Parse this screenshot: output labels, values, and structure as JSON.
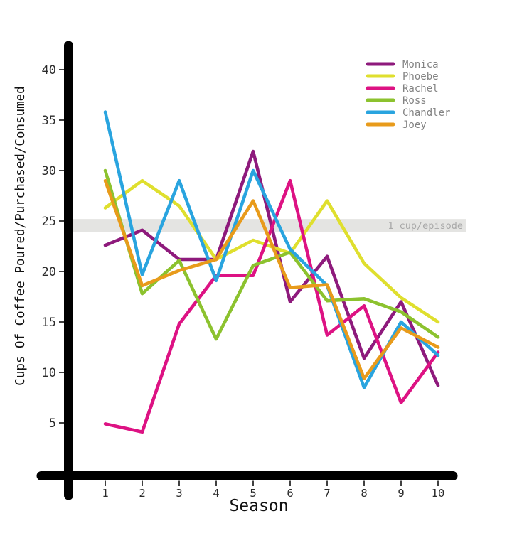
{
  "chart_data": {
    "type": "line",
    "title": "",
    "xlabel": "Season",
    "ylabel": "Cups Of Coffee Poured/Purchased/Consumed",
    "x": [
      1,
      2,
      3,
      4,
      5,
      6,
      7,
      8,
      9,
      10
    ],
    "x_tick_labels": [
      "1",
      "2",
      "3",
      "4",
      "5",
      "6",
      "7",
      "8",
      "9",
      "10"
    ],
    "y_ticks": [
      5,
      10,
      15,
      20,
      25,
      30,
      35,
      40
    ],
    "xlim": [
      0.1,
      10.6
    ],
    "ylim": [
      0,
      42.5
    ],
    "grid": false,
    "legend_position": "top-right",
    "series": [
      {
        "name": "Monica",
        "color": "#8e1a7c",
        "values": [
          22.6,
          24.1,
          21.2,
          21.2,
          31.9,
          17.0,
          21.5,
          11.4,
          17.0,
          8.7
        ]
      },
      {
        "name": "Phoebe",
        "color": "#dfdf2e",
        "values": [
          26.3,
          29.0,
          26.5,
          21.2,
          23.1,
          21.8,
          27.0,
          20.8,
          17.4,
          15.0
        ]
      },
      {
        "name": "Rachel",
        "color": "#dd1283",
        "values": [
          4.9,
          4.1,
          14.8,
          19.6,
          19.6,
          29.0,
          13.7,
          16.6,
          7.0,
          12.0
        ]
      },
      {
        "name": "Ross",
        "color": "#8cc22e",
        "values": [
          30.0,
          17.8,
          21.1,
          13.3,
          20.6,
          21.9,
          17.1,
          17.3,
          16.0,
          13.5
        ]
      },
      {
        "name": "Chandler",
        "color": "#29a4df",
        "values": [
          35.8,
          19.7,
          29.0,
          19.1,
          30.0,
          22.2,
          18.6,
          8.5,
          15.0,
          11.7
        ]
      },
      {
        "name": "Joey",
        "color": "#e89b1b",
        "values": [
          29.0,
          18.6,
          20.1,
          21.2,
          27.0,
          18.4,
          18.7,
          9.4,
          14.4,
          12.5
        ]
      }
    ],
    "annotation_band": {
      "label": "1 cup/episode",
      "y_from": 23.9,
      "y_to": 25.2,
      "color": "#e4e4e2",
      "label_color": "#a8a8a8"
    }
  }
}
